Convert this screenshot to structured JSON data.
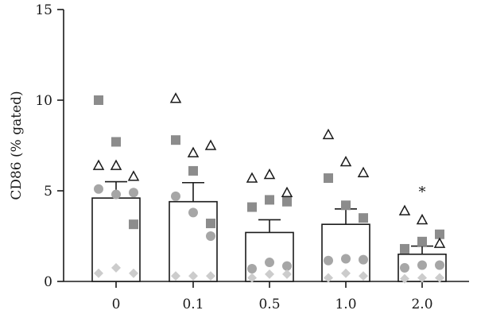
{
  "chart_data": {
    "type": "bar",
    "title": "",
    "xlabel": "",
    "ylabel": "CD86 (% gated)",
    "ylim": [
      0,
      15
    ],
    "yticks": [
      0,
      5,
      10,
      15
    ],
    "grid": false,
    "categories": [
      "0",
      "0.1",
      "0.5",
      "1.0",
      "2.0"
    ],
    "values": [
      4.6,
      4.4,
      2.7,
      3.15,
      1.5
    ],
    "errors": [
      0.9,
      1.05,
      0.7,
      0.85,
      0.45
    ],
    "bar_fill": "#ffffff",
    "bar_stroke": "#1a1a1a",
    "annotations": [
      {
        "category": "2.0",
        "text": "*",
        "y": 5.1
      }
    ],
    "point_series": [
      {
        "marker": "square",
        "color": "#8c8c8c",
        "points": [
          [
            0,
            10.0
          ],
          [
            0,
            7.7
          ],
          [
            0,
            3.15
          ],
          [
            1,
            7.8
          ],
          [
            1,
            6.1
          ],
          [
            1,
            3.2
          ],
          [
            2,
            4.1
          ],
          [
            2,
            4.5
          ],
          [
            2,
            4.4
          ],
          [
            3,
            5.7
          ],
          [
            3,
            4.2
          ],
          [
            3,
            3.5
          ],
          [
            4,
            1.8
          ],
          [
            4,
            2.2
          ],
          [
            4,
            2.6
          ]
        ]
      },
      {
        "marker": "triangle",
        "color": "#1a1a1a",
        "points": [
          [
            0,
            6.4
          ],
          [
            0,
            6.4
          ],
          [
            0,
            5.8
          ],
          [
            1,
            10.1
          ],
          [
            1,
            7.1
          ],
          [
            1,
            7.5
          ],
          [
            2,
            5.7
          ],
          [
            2,
            5.9
          ],
          [
            2,
            4.9
          ],
          [
            3,
            8.1
          ],
          [
            3,
            6.6
          ],
          [
            3,
            6.0
          ],
          [
            4,
            3.9
          ],
          [
            4,
            3.4
          ],
          [
            4,
            2.1
          ]
        ]
      },
      {
        "marker": "circle",
        "color": "#a6a6a6",
        "points": [
          [
            0,
            5.1
          ],
          [
            0,
            4.8
          ],
          [
            0,
            4.9
          ],
          [
            1,
            4.7
          ],
          [
            1,
            3.8
          ],
          [
            1,
            2.5
          ],
          [
            2,
            0.7
          ],
          [
            2,
            1.05
          ],
          [
            2,
            0.85
          ],
          [
            3,
            1.15
          ],
          [
            3,
            1.25
          ],
          [
            3,
            1.2
          ],
          [
            4,
            0.75
          ],
          [
            4,
            0.9
          ],
          [
            4,
            0.9
          ]
        ]
      },
      {
        "marker": "diamond",
        "color": "#cccccc",
        "points": [
          [
            0,
            0.45
          ],
          [
            0,
            0.75
          ],
          [
            0,
            0.45
          ],
          [
            1,
            0.3
          ],
          [
            1,
            0.3
          ],
          [
            1,
            0.3
          ],
          [
            2,
            0.2
          ],
          [
            2,
            0.4
          ],
          [
            2,
            0.4
          ],
          [
            3,
            0.2
          ],
          [
            3,
            0.45
          ],
          [
            3,
            0.3
          ],
          [
            4,
            0.15
          ],
          [
            4,
            0.2
          ],
          [
            4,
            0.2
          ]
        ]
      }
    ]
  }
}
